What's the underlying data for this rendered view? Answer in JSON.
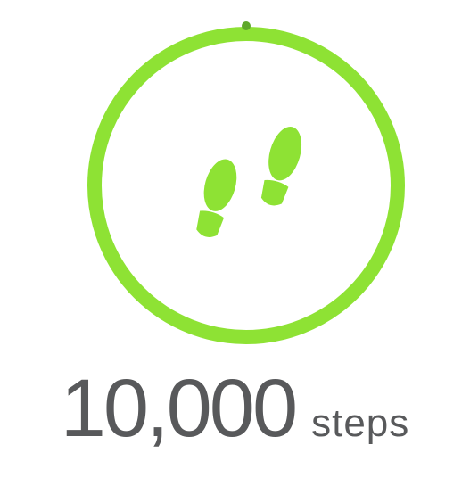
{
  "goal": {
    "value": "10,000",
    "unit": "steps",
    "progress": 1.0,
    "icon": "footprints-icon"
  },
  "colors": {
    "ring": "#8ee234",
    "ring_marker": "#5fa82a",
    "text": "#58595b",
    "background": "#ffffff"
  }
}
